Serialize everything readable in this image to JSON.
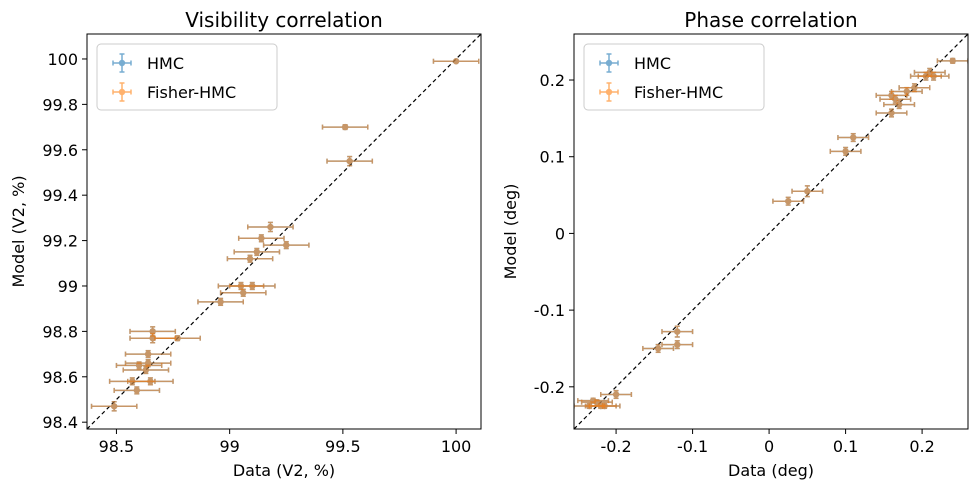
{
  "colors": {
    "hmc": "#1f77b4",
    "fisher": "#ff7f0e",
    "overlap": "#a87a55",
    "diagonal": "#000000"
  },
  "chart_data": [
    {
      "type": "scatter",
      "title": "Visibility correlation",
      "xlabel": "Data (V2, %)",
      "ylabel": "Model (V2, %)",
      "xlim": [
        98.37,
        100.11
      ],
      "ylim": [
        98.37,
        100.11
      ],
      "xticks": [
        98.5,
        99,
        99.5,
        100
      ],
      "xtick_labels": [
        "98.5",
        "99",
        "99.5",
        "100"
      ],
      "yticks": [
        98.4,
        98.6,
        98.8,
        99.0,
        99.2,
        99.4,
        99.6,
        99.8,
        100.0
      ],
      "ytick_labels": [
        "98.4",
        "98.6",
        "98.8",
        "99",
        "99.2",
        "99.4",
        "99.6",
        "99.8",
        "100"
      ],
      "legend_position": "top-left",
      "legend": [
        "HMC",
        "Fisher-HMC"
      ],
      "series": [
        {
          "name": "HMC",
          "points": [
            {
              "x": 100.0,
              "y": 99.99,
              "xerr": 0.1,
              "yerr": 0.005
            },
            {
              "x": 99.51,
              "y": 99.7,
              "xerr": 0.1,
              "yerr": 0.01
            },
            {
              "x": 99.53,
              "y": 99.55,
              "xerr": 0.1,
              "yerr": 0.02
            },
            {
              "x": 99.18,
              "y": 99.26,
              "xerr": 0.1,
              "yerr": 0.02
            },
            {
              "x": 99.25,
              "y": 99.18,
              "xerr": 0.1,
              "yerr": 0.015
            },
            {
              "x": 99.14,
              "y": 99.21,
              "xerr": 0.1,
              "yerr": 0.015
            },
            {
              "x": 99.12,
              "y": 99.15,
              "xerr": 0.1,
              "yerr": 0.015
            },
            {
              "x": 99.09,
              "y": 99.12,
              "xerr": 0.1,
              "yerr": 0.015
            },
            {
              "x": 99.1,
              "y": 99.0,
              "xerr": 0.1,
              "yerr": 0.015
            },
            {
              "x": 99.05,
              "y": 99.0,
              "xerr": 0.1,
              "yerr": 0.015
            },
            {
              "x": 99.06,
              "y": 98.97,
              "xerr": 0.1,
              "yerr": 0.015
            },
            {
              "x": 98.96,
              "y": 98.93,
              "xerr": 0.1,
              "yerr": 0.015
            },
            {
              "x": 98.77,
              "y": 98.77,
              "xerr": 0.1,
              "yerr": 0.01
            },
            {
              "x": 98.66,
              "y": 98.8,
              "xerr": 0.1,
              "yerr": 0.02
            },
            {
              "x": 98.66,
              "y": 98.77,
              "xerr": 0.1,
              "yerr": 0.02
            },
            {
              "x": 98.64,
              "y": 98.7,
              "xerr": 0.1,
              "yerr": 0.015
            },
            {
              "x": 98.64,
              "y": 98.66,
              "xerr": 0.1,
              "yerr": 0.015
            },
            {
              "x": 98.6,
              "y": 98.65,
              "xerr": 0.1,
              "yerr": 0.015
            },
            {
              "x": 98.63,
              "y": 98.63,
              "xerr": 0.1,
              "yerr": 0.015
            },
            {
              "x": 98.65,
              "y": 98.58,
              "xerr": 0.1,
              "yerr": 0.015
            },
            {
              "x": 98.57,
              "y": 98.58,
              "xerr": 0.1,
              "yerr": 0.015
            },
            {
              "x": 98.59,
              "y": 98.54,
              "xerr": 0.1,
              "yerr": 0.015
            },
            {
              "x": 98.49,
              "y": 98.47,
              "xerr": 0.1,
              "yerr": 0.02
            }
          ]
        },
        {
          "name": "Fisher-HMC",
          "points": [
            {
              "x": 100.0,
              "y": 99.99,
              "xerr": 0.1,
              "yerr": 0.005
            },
            {
              "x": 99.51,
              "y": 99.7,
              "xerr": 0.1,
              "yerr": 0.01
            },
            {
              "x": 99.53,
              "y": 99.55,
              "xerr": 0.1,
              "yerr": 0.02
            },
            {
              "x": 99.18,
              "y": 99.26,
              "xerr": 0.1,
              "yerr": 0.02
            },
            {
              "x": 99.25,
              "y": 99.18,
              "xerr": 0.1,
              "yerr": 0.015
            },
            {
              "x": 99.14,
              "y": 99.21,
              "xerr": 0.1,
              "yerr": 0.015
            },
            {
              "x": 99.12,
              "y": 99.15,
              "xerr": 0.1,
              "yerr": 0.015
            },
            {
              "x": 99.09,
              "y": 99.12,
              "xerr": 0.1,
              "yerr": 0.015
            },
            {
              "x": 99.1,
              "y": 99.0,
              "xerr": 0.1,
              "yerr": 0.015
            },
            {
              "x": 99.05,
              "y": 99.0,
              "xerr": 0.1,
              "yerr": 0.015
            },
            {
              "x": 99.06,
              "y": 98.97,
              "xerr": 0.1,
              "yerr": 0.015
            },
            {
              "x": 98.96,
              "y": 98.93,
              "xerr": 0.1,
              "yerr": 0.015
            },
            {
              "x": 98.77,
              "y": 98.77,
              "xerr": 0.1,
              "yerr": 0.01
            },
            {
              "x": 98.66,
              "y": 98.8,
              "xerr": 0.1,
              "yerr": 0.02
            },
            {
              "x": 98.66,
              "y": 98.77,
              "xerr": 0.1,
              "yerr": 0.02
            },
            {
              "x": 98.64,
              "y": 98.7,
              "xerr": 0.1,
              "yerr": 0.015
            },
            {
              "x": 98.64,
              "y": 98.66,
              "xerr": 0.1,
              "yerr": 0.015
            },
            {
              "x": 98.6,
              "y": 98.65,
              "xerr": 0.1,
              "yerr": 0.015
            },
            {
              "x": 98.63,
              "y": 98.63,
              "xerr": 0.1,
              "yerr": 0.015
            },
            {
              "x": 98.65,
              "y": 98.58,
              "xerr": 0.1,
              "yerr": 0.015
            },
            {
              "x": 98.57,
              "y": 98.58,
              "xerr": 0.1,
              "yerr": 0.015
            },
            {
              "x": 98.59,
              "y": 98.54,
              "xerr": 0.1,
              "yerr": 0.015
            },
            {
              "x": 98.49,
              "y": 98.47,
              "xerr": 0.1,
              "yerr": 0.02
            }
          ]
        }
      ]
    },
    {
      "type": "scatter",
      "title": "Phase correlation",
      "xlabel": "Data (deg)",
      "ylabel": "Model (deg)",
      "xlim": [
        -0.255,
        0.26
      ],
      "ylim": [
        -0.255,
        0.26
      ],
      "xticks": [
        -0.2,
        -0.1,
        0,
        0.1,
        0.2
      ],
      "xtick_labels": [
        "-0.2",
        "-0.1",
        "0",
        "0.1",
        "0.2"
      ],
      "yticks": [
        -0.2,
        -0.1,
        0,
        0.1,
        0.2
      ],
      "ytick_labels": [
        "-0.2",
        "-0.1",
        "0",
        "0.1",
        "0.2"
      ],
      "legend_position": "top-left",
      "legend": [
        "HMC",
        "Fisher-HMC"
      ],
      "series": [
        {
          "name": "HMC",
          "points": [
            {
              "x": 0.24,
              "y": 0.225,
              "xerr": 0.02,
              "yerr": 0.003
            },
            {
              "x": 0.21,
              "y": 0.21,
              "xerr": 0.02,
              "yerr": 0.005
            },
            {
              "x": 0.215,
              "y": 0.205,
              "xerr": 0.02,
              "yerr": 0.005
            },
            {
              "x": 0.205,
              "y": 0.205,
              "xerr": 0.02,
              "yerr": 0.005
            },
            {
              "x": 0.19,
              "y": 0.19,
              "xerr": 0.02,
              "yerr": 0.005
            },
            {
              "x": 0.18,
              "y": 0.185,
              "xerr": 0.02,
              "yerr": 0.005
            },
            {
              "x": 0.16,
              "y": 0.18,
              "xerr": 0.02,
              "yerr": 0.005
            },
            {
              "x": 0.165,
              "y": 0.175,
              "xerr": 0.02,
              "yerr": 0.005
            },
            {
              "x": 0.17,
              "y": 0.168,
              "xerr": 0.02,
              "yerr": 0.005
            },
            {
              "x": 0.16,
              "y": 0.157,
              "xerr": 0.02,
              "yerr": 0.005
            },
            {
              "x": 0.11,
              "y": 0.125,
              "xerr": 0.02,
              "yerr": 0.005
            },
            {
              "x": 0.1,
              "y": 0.107,
              "xerr": 0.02,
              "yerr": 0.005
            },
            {
              "x": 0.05,
              "y": 0.055,
              "xerr": 0.02,
              "yerr": 0.007
            },
            {
              "x": 0.025,
              "y": 0.042,
              "xerr": 0.02,
              "yerr": 0.005
            },
            {
              "x": -0.12,
              "y": -0.128,
              "xerr": 0.02,
              "yerr": 0.007
            },
            {
              "x": -0.12,
              "y": -0.145,
              "xerr": 0.02,
              "yerr": 0.005
            },
            {
              "x": -0.145,
              "y": -0.15,
              "xerr": 0.02,
              "yerr": 0.005
            },
            {
              "x": -0.2,
              "y": -0.21,
              "xerr": 0.02,
              "yerr": 0.005
            },
            {
              "x": -0.23,
              "y": -0.218,
              "xerr": 0.02,
              "yerr": 0.003
            },
            {
              "x": -0.225,
              "y": -0.22,
              "xerr": 0.02,
              "yerr": 0.003
            },
            {
              "x": -0.22,
              "y": -0.225,
              "xerr": 0.02,
              "yerr": 0.003
            },
            {
              "x": -0.215,
              "y": -0.225,
              "xerr": 0.02,
              "yerr": 0.003
            },
            {
              "x": -0.235,
              "y": -0.225,
              "xerr": 0.02,
              "yerr": 0.003
            }
          ]
        },
        {
          "name": "Fisher-HMC",
          "points": [
            {
              "x": 0.24,
              "y": 0.225,
              "xerr": 0.02,
              "yerr": 0.003
            },
            {
              "x": 0.21,
              "y": 0.21,
              "xerr": 0.02,
              "yerr": 0.005
            },
            {
              "x": 0.215,
              "y": 0.205,
              "xerr": 0.02,
              "yerr": 0.005
            },
            {
              "x": 0.205,
              "y": 0.205,
              "xerr": 0.02,
              "yerr": 0.005
            },
            {
              "x": 0.19,
              "y": 0.19,
              "xerr": 0.02,
              "yerr": 0.005
            },
            {
              "x": 0.18,
              "y": 0.185,
              "xerr": 0.02,
              "yerr": 0.005
            },
            {
              "x": 0.16,
              "y": 0.18,
              "xerr": 0.02,
              "yerr": 0.005
            },
            {
              "x": 0.165,
              "y": 0.175,
              "xerr": 0.02,
              "yerr": 0.005
            },
            {
              "x": 0.17,
              "y": 0.168,
              "xerr": 0.02,
              "yerr": 0.005
            },
            {
              "x": 0.16,
              "y": 0.157,
              "xerr": 0.02,
              "yerr": 0.005
            },
            {
              "x": 0.11,
              "y": 0.125,
              "xerr": 0.02,
              "yerr": 0.005
            },
            {
              "x": 0.1,
              "y": 0.107,
              "xerr": 0.02,
              "yerr": 0.005
            },
            {
              "x": 0.05,
              "y": 0.055,
              "xerr": 0.02,
              "yerr": 0.007
            },
            {
              "x": 0.025,
              "y": 0.042,
              "xerr": 0.02,
              "yerr": 0.005
            },
            {
              "x": -0.12,
              "y": -0.128,
              "xerr": 0.02,
              "yerr": 0.007
            },
            {
              "x": -0.12,
              "y": -0.145,
              "xerr": 0.02,
              "yerr": 0.005
            },
            {
              "x": -0.145,
              "y": -0.15,
              "xerr": 0.02,
              "yerr": 0.005
            },
            {
              "x": -0.2,
              "y": -0.21,
              "xerr": 0.02,
              "yerr": 0.005
            },
            {
              "x": -0.23,
              "y": -0.218,
              "xerr": 0.02,
              "yerr": 0.003
            },
            {
              "x": -0.225,
              "y": -0.22,
              "xerr": 0.02,
              "yerr": 0.003
            },
            {
              "x": -0.22,
              "y": -0.225,
              "xerr": 0.02,
              "yerr": 0.003
            },
            {
              "x": -0.215,
              "y": -0.225,
              "xerr": 0.02,
              "yerr": 0.003
            },
            {
              "x": -0.235,
              "y": -0.225,
              "xerr": 0.02,
              "yerr": 0.003
            }
          ]
        }
      ]
    }
  ]
}
